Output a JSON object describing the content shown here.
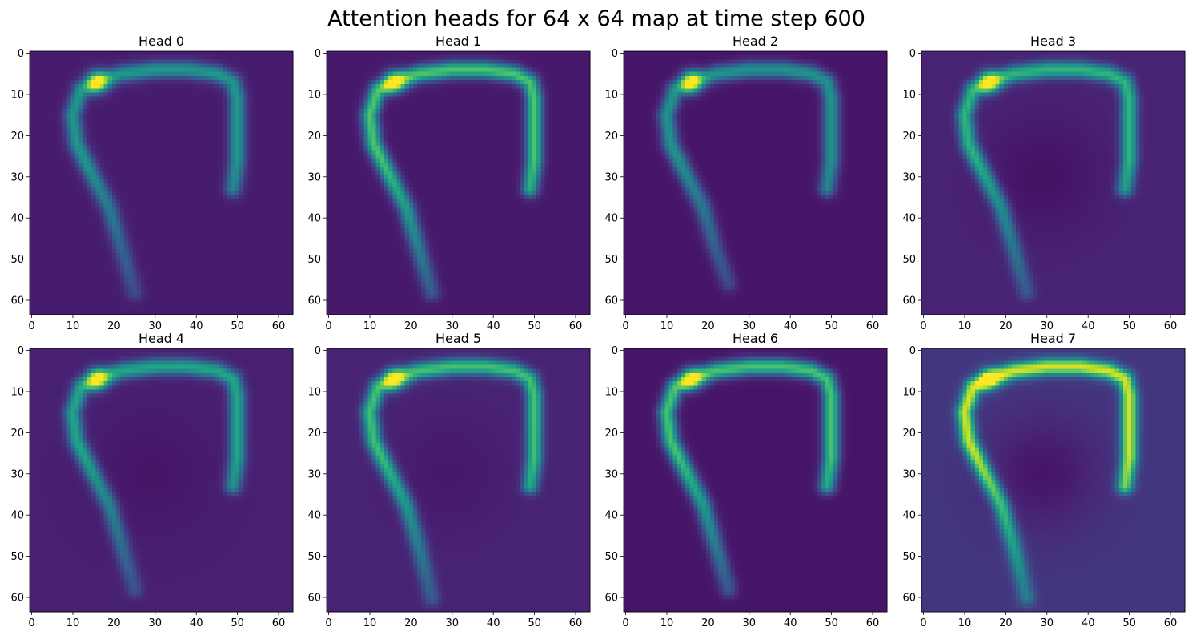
{
  "figure": {
    "suptitle": "Attention heads for 64 x 64 map at time step 600"
  },
  "colors": {
    "background": "#ffffff",
    "axis": "#000000",
    "colormap": "viridis"
  },
  "chart_data": {
    "type": "heatmap",
    "title": "Attention heads for 64 x 64 map at time step 600",
    "grid": false,
    "colormap": "viridis",
    "layout": {
      "rows": 2,
      "cols": 4
    },
    "map_size": [
      64,
      64
    ],
    "xlim": [
      -0.5,
      63.5
    ],
    "ylim": [
      63.5,
      -0.5
    ],
    "xticks": [
      0,
      10,
      20,
      30,
      40,
      50,
      60
    ],
    "yticks": [
      0,
      10,
      20,
      30,
      40,
      50,
      60
    ],
    "hot_spot": {
      "x": 16,
      "y": 7
    },
    "heads": [
      {
        "title": "Head 0",
        "peak": 0.95,
        "ridge": 0.45,
        "background": 0.08,
        "interior": 0.0,
        "left_arm_bottom": 58
      },
      {
        "title": "Head 1",
        "peak": 0.95,
        "ridge": 0.65,
        "background": 0.07,
        "interior": 0.0,
        "left_arm_bottom": 58
      },
      {
        "title": "Head 2",
        "peak": 1.0,
        "ridge": 0.45,
        "background": 0.06,
        "interior": 0.0,
        "left_arm_bottom": 56
      },
      {
        "title": "Head 3",
        "peak": 0.95,
        "ridge": 0.55,
        "background": 0.1,
        "interior": 0.05,
        "left_arm_bottom": 58
      },
      {
        "title": "Head 4",
        "peak": 0.95,
        "ridge": 0.5,
        "background": 0.09,
        "interior": 0.03,
        "left_arm_bottom": 58
      },
      {
        "title": "Head 5",
        "peak": 0.95,
        "ridge": 0.6,
        "background": 0.1,
        "interior": 0.03,
        "left_arm_bottom": 60
      },
      {
        "title": "Head 6",
        "peak": 0.95,
        "ridge": 0.65,
        "background": 0.06,
        "interior": 0.0,
        "left_arm_bottom": 58
      },
      {
        "title": "Head 7",
        "peak": 0.95,
        "ridge": 0.78,
        "background": 0.16,
        "interior": 0.1,
        "left_arm_bottom": 60
      }
    ]
  }
}
